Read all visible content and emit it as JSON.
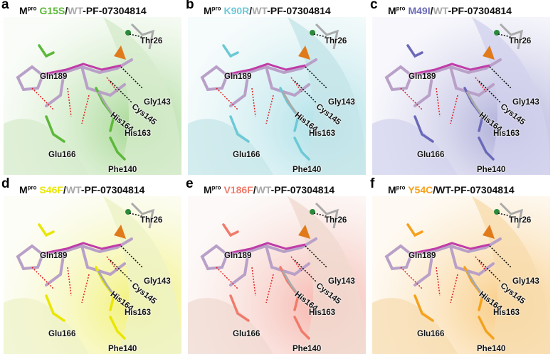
{
  "figure": {
    "compound": "-PF-07304814",
    "prefix": "M",
    "superscript": "pro",
    "wt_label": "WT",
    "wt_color": "#a9a9a9",
    "residues": [
      "Thr26",
      "Gln189",
      "Gly143",
      "Cys145",
      "His164",
      "His163",
      "Glu166",
      "Phe140"
    ],
    "panels": [
      {
        "letter": "a",
        "mutation": "G15S",
        "color": "#5cb83a",
        "wt_color": "#a9a9a9",
        "tint": "#d6ebcc",
        "icon": "protein-structure-g15s"
      },
      {
        "letter": "b",
        "mutation": "K90R",
        "color": "#6cc9d6",
        "wt_color": "#a9a9a9",
        "tint": "#c4e5e8",
        "icon": "protein-structure-k90r"
      },
      {
        "letter": "c",
        "mutation": "M49I",
        "color": "#6a69b9",
        "wt_color": "#a9a9a9",
        "tint": "#d2d2ee",
        "icon": "protein-structure-m49i"
      },
      {
        "letter": "d",
        "mutation": "S46F",
        "color": "#e9e600",
        "wt_color": "#a9a9a9",
        "tint": "#eef2c6",
        "icon": "protein-structure-s46f"
      },
      {
        "letter": "e",
        "mutation": "V186F",
        "color": "#f07b6b",
        "wt_color": "#a9a9a9",
        "tint": "#f0d9d0",
        "icon": "protein-structure-v186f"
      },
      {
        "letter": "f",
        "mutation": "Y54C",
        "color": "#f5a11c",
        "wt_color": "#111111",
        "tint": "#f7dcae",
        "icon": "protein-structure-y54c"
      }
    ]
  }
}
